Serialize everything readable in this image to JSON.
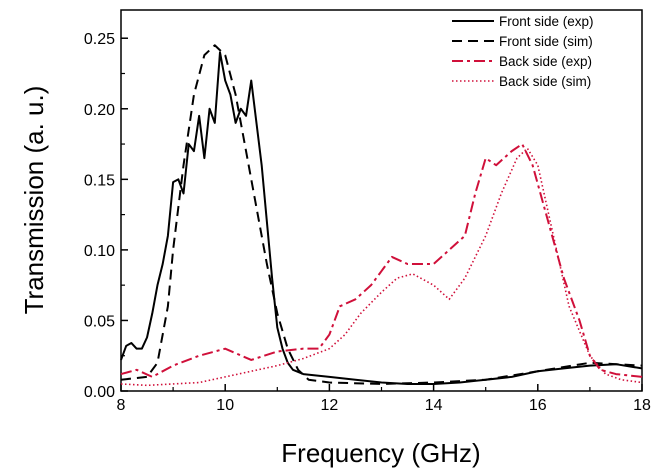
{
  "chart_data": {
    "type": "line",
    "xlabel": "Frequency (GHz)",
    "ylabel": "Transmission (a. u.)",
    "xlim": [
      8,
      18
    ],
    "ylim": [
      0,
      0.27
    ],
    "xticks": [
      8,
      10,
      12,
      14,
      16,
      18
    ],
    "yticks": [
      0.0,
      0.05,
      0.1,
      0.15,
      0.2,
      0.25
    ],
    "ytick_labels": [
      "0.00",
      "0.05",
      "0.10",
      "0.15",
      "0.20",
      "0.25"
    ],
    "grid": false,
    "legend_position": "top-right",
    "series": [
      {
        "name": "Front side (exp)",
        "color": "#000000",
        "style": "solid",
        "x": [
          8.0,
          8.1,
          8.2,
          8.3,
          8.4,
          8.5,
          8.6,
          8.7,
          8.8,
          8.9,
          9.0,
          9.1,
          9.2,
          9.3,
          9.4,
          9.5,
          9.6,
          9.7,
          9.8,
          9.9,
          10.0,
          10.1,
          10.2,
          10.3,
          10.4,
          10.5,
          10.6,
          10.7,
          10.8,
          10.9,
          11.0,
          11.1,
          11.2,
          11.3,
          11.5,
          12.0,
          12.5,
          13.0,
          13.5,
          14.0,
          14.5,
          15.0,
          15.5,
          16.0,
          16.5,
          17.0,
          17.5,
          18.0
        ],
        "y": [
          0.022,
          0.032,
          0.034,
          0.03,
          0.03,
          0.038,
          0.055,
          0.075,
          0.09,
          0.11,
          0.148,
          0.15,
          0.14,
          0.175,
          0.17,
          0.195,
          0.165,
          0.2,
          0.19,
          0.24,
          0.22,
          0.21,
          0.19,
          0.2,
          0.195,
          0.22,
          0.19,
          0.16,
          0.12,
          0.08,
          0.045,
          0.03,
          0.02,
          0.015,
          0.012,
          0.01,
          0.008,
          0.006,
          0.005,
          0.005,
          0.006,
          0.008,
          0.01,
          0.014,
          0.016,
          0.018,
          0.019,
          0.016
        ]
      },
      {
        "name": "Front side (sim)",
        "color": "#000000",
        "style": "dashed",
        "x": [
          8.0,
          8.5,
          8.7,
          8.9,
          9.0,
          9.2,
          9.4,
          9.6,
          9.8,
          10.0,
          10.2,
          10.4,
          10.6,
          10.8,
          11.0,
          11.2,
          11.4,
          11.6,
          12.0,
          13.0,
          14.0,
          15.0,
          16.0,
          17.0,
          18.0
        ],
        "y": [
          0.008,
          0.01,
          0.02,
          0.06,
          0.1,
          0.16,
          0.21,
          0.238,
          0.245,
          0.238,
          0.21,
          0.17,
          0.13,
          0.09,
          0.055,
          0.03,
          0.015,
          0.008,
          0.006,
          0.005,
          0.006,
          0.008,
          0.014,
          0.02,
          0.018
        ]
      },
      {
        "name": "Back side (exp)",
        "color": "#d0103a",
        "style": "dashdot",
        "x": [
          8.0,
          8.3,
          8.6,
          9.0,
          9.5,
          10.0,
          10.5,
          11.0,
          11.5,
          11.8,
          12.0,
          12.2,
          12.5,
          12.8,
          13.0,
          13.2,
          13.5,
          13.8,
          14.0,
          14.3,
          14.6,
          14.8,
          15.0,
          15.2,
          15.5,
          15.7,
          15.9,
          16.2,
          16.5,
          16.8,
          17.0,
          17.2,
          17.5,
          18.0
        ],
        "y": [
          0.012,
          0.015,
          0.01,
          0.018,
          0.025,
          0.03,
          0.022,
          0.028,
          0.03,
          0.03,
          0.04,
          0.06,
          0.065,
          0.075,
          0.085,
          0.095,
          0.09,
          0.09,
          0.09,
          0.1,
          0.11,
          0.14,
          0.165,
          0.16,
          0.17,
          0.175,
          0.16,
          0.12,
          0.08,
          0.05,
          0.025,
          0.015,
          0.012,
          0.01
        ]
      },
      {
        "name": "Back side (sim)",
        "color": "#d0103a",
        "style": "dotted",
        "x": [
          8.0,
          8.5,
          9.0,
          9.5,
          10.0,
          10.5,
          11.0,
          11.5,
          12.0,
          12.3,
          12.6,
          13.0,
          13.3,
          13.6,
          14.0,
          14.3,
          14.6,
          15.0,
          15.3,
          15.6,
          15.8,
          16.0,
          16.3,
          16.6,
          17.0,
          17.3,
          17.6,
          18.0
        ],
        "y": [
          0.005,
          0.004,
          0.005,
          0.006,
          0.01,
          0.014,
          0.018,
          0.023,
          0.03,
          0.04,
          0.055,
          0.07,
          0.08,
          0.083,
          0.075,
          0.065,
          0.08,
          0.11,
          0.14,
          0.165,
          0.172,
          0.16,
          0.11,
          0.06,
          0.025,
          0.012,
          0.008,
          0.006
        ]
      }
    ]
  }
}
